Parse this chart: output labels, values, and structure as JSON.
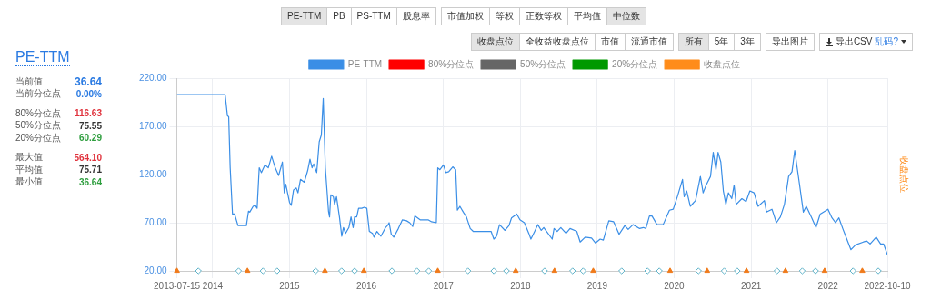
{
  "chart_data": [
    {
      "type": "other",
      "annotations": [
        "PE-TTM",
        "PB",
        "PS-TTM",
        "股息率",
        "市值加权",
        "等权",
        "正数等权",
        "平均值",
        "中位数",
        "收盘点位",
        "全收益收盘点位",
        "市值",
        "流通市值",
        "所有",
        "5年",
        "3年",
        "导出图片",
        "导出CSV",
        "乱码?"
      ]
    },
    {
      "type": "other",
      "title": "PE-TTM",
      "annotations": [
        "当前值",
        "36.64",
        "当前分位点",
        "0.00%",
        "80%分位点",
        "116.63",
        "50%分位点",
        "75.55",
        "20%分位点",
        "60.29",
        "最大值",
        "564.10",
        "平均值",
        "75.71",
        "最小值",
        "36.64"
      ]
    },
    {
      "type": "line",
      "y2label": "收盘点位",
      "legend": "top",
      "grid": true,
      "xlim": [
        "2013-07-15",
        "2022-10-10"
      ],
      "xticks": [
        "2013-07-15",
        "2014",
        "2015",
        "2016",
        "2017",
        "2018",
        "2019",
        "2020",
        "2021",
        "2022",
        "2022-10-10"
      ],
      "ylim": [
        20,
        220
      ],
      "yticks": [
        {
          "value": 20,
          "label": "20.00"
        },
        {
          "value": 70,
          "label": "70.00"
        },
        {
          "value": 120,
          "label": "120.00"
        },
        {
          "value": 170,
          "label": "170.00"
        },
        {
          "value": 220,
          "label": "220.00"
        }
      ],
      "series": [
        {
          "name": "PE-TTM",
          "type": "line",
          "color": "#3a8ee6",
          "x": [
            "2013-07-15",
            "2014-03-01",
            "2014-03-12",
            "2014-03-18",
            "2014-03-25",
            "2014-04-05",
            "2014-04-15",
            "2014-05-01",
            "2014-06-10",
            "2014-06-20",
            "2014-06-26",
            "2014-07-12",
            "2014-07-22",
            "2014-07-31",
            "2014-08-10",
            "2014-08-20",
            "2014-09-06",
            "2014-09-22",
            "2014-10-08",
            "2014-10-25",
            "2014-11-10",
            "2014-11-28",
            "2014-12-07",
            "2014-12-14",
            "2015-01-01",
            "2015-01-09",
            "2015-01-20",
            "2015-02-02",
            "2015-02-10",
            "2015-02-22",
            "2015-03-12",
            "2015-03-28",
            "2015-04-08",
            "2015-04-18",
            "2015-04-26",
            "2015-05-10",
            "2015-05-22",
            "2015-06-01",
            "2015-06-10",
            "2015-06-20",
            "2015-07-05",
            "2015-07-10",
            "2015-07-16",
            "2015-07-28",
            "2015-08-03",
            "2015-08-12",
            "2015-08-26",
            "2015-09-06",
            "2015-09-14",
            "2015-09-24",
            "2015-10-10",
            "2015-10-20",
            "2015-10-30",
            "2015-11-06",
            "2015-11-16",
            "2015-11-25",
            "2015-12-10",
            "2015-12-22",
            "2016-01-03",
            "2016-01-15",
            "2016-01-30",
            "2016-02-06",
            "2016-02-20",
            "2016-03-10",
            "2016-04-01",
            "2016-04-10",
            "2016-04-18",
            "2016-04-28",
            "2016-05-10",
            "2016-06-01",
            "2016-06-20",
            "2016-07-10",
            "2016-07-25",
            "2016-08-08",
            "2016-08-18",
            "2016-09-12",
            "2016-10-20",
            "2016-11-05",
            "2016-11-28",
            "2016-12-05",
            "2016-12-15",
            "2017-01-01",
            "2017-01-12",
            "2017-01-26",
            "2017-02-14",
            "2017-02-28",
            "2017-03-08",
            "2017-03-20",
            "2017-04-05",
            "2017-04-20",
            "2017-05-08",
            "2017-05-22",
            "2017-06-20",
            "2017-08-15",
            "2017-08-28",
            "2017-09-10",
            "2017-09-24",
            "2017-10-20",
            "2017-11-08",
            "2017-11-20",
            "2017-12-15",
            "2017-12-30",
            "2018-01-20",
            "2018-02-10",
            "2018-02-20",
            "2018-03-10",
            "2018-03-25",
            "2018-04-10",
            "2018-04-22",
            "2018-06-01",
            "2018-06-10",
            "2018-06-25",
            "2018-07-12",
            "2018-08-06",
            "2018-08-25",
            "2018-09-26",
            "2018-10-12",
            "2018-11-05",
            "2018-12-05",
            "2018-12-24",
            "2019-01-15",
            "2019-01-30",
            "2019-02-25",
            "2019-03-20",
            "2019-04-15",
            "2019-05-12",
            "2019-05-28",
            "2019-06-20",
            "2019-07-20",
            "2019-08-08",
            "2019-08-20",
            "2019-09-06",
            "2019-09-18",
            "2019-10-12",
            "2019-11-10",
            "2019-12-10",
            "2019-12-28",
            "2020-01-18",
            "2020-02-10",
            "2020-02-18",
            "2020-03-01",
            "2020-03-18",
            "2020-04-12",
            "2020-05-05",
            "2020-05-18",
            "2020-06-01",
            "2020-06-22",
            "2020-07-05",
            "2020-07-18",
            "2020-07-28",
            "2020-08-10",
            "2020-08-22",
            "2020-09-03",
            "2020-09-15",
            "2020-10-01",
            "2020-10-12",
            "2020-10-22",
            "2020-11-18",
            "2020-12-08",
            "2020-12-26",
            "2021-01-15",
            "2021-02-03",
            "2021-03-05",
            "2021-03-15",
            "2021-04-10",
            "2021-05-01",
            "2021-05-20",
            "2021-06-08",
            "2021-06-28",
            "2021-07-14",
            "2021-07-27",
            "2021-08-18",
            "2021-09-06",
            "2021-09-20",
            "2021-10-14",
            "2021-11-05",
            "2021-11-25",
            "2021-12-18",
            "2022-01-01",
            "2022-01-20",
            "2022-02-06",
            "2022-02-22",
            "2022-03-12",
            "2022-04-20",
            "2022-05-12",
            "2022-06-18",
            "2022-07-04",
            "2022-07-20",
            "2022-08-18",
            "2022-09-08",
            "2022-09-22",
            "2022-10-10"
          ],
          "values": [
            203,
            203,
            181,
            180,
            127,
            79,
            79,
            67,
            67,
            82,
            81,
            87,
            88,
            85,
            127,
            122,
            130,
            127,
            139,
            127,
            119,
            133,
            101,
            110,
            91,
            88,
            104,
            106,
            101,
            115,
            112,
            124,
            136,
            127,
            131,
            122,
            154,
            161,
            199,
            127,
            82,
            76,
            99,
            97,
            89,
            97,
            76,
            56,
            65,
            59,
            65,
            76,
            65,
            76,
            76,
            85,
            85,
            86,
            85,
            61,
            59,
            55,
            61,
            56,
            65,
            67,
            70,
            58,
            55,
            64,
            73,
            72,
            70,
            66,
            77,
            73,
            73,
            71,
            70,
            127,
            125,
            130,
            122,
            123,
            128,
            125,
            83,
            87,
            81,
            76,
            64,
            61,
            61,
            61,
            53,
            56,
            68,
            62,
            67,
            75,
            79,
            73,
            70,
            59,
            53,
            61,
            68,
            62,
            65,
            53,
            64,
            61,
            65,
            59,
            64,
            61,
            50,
            55,
            54,
            49,
            53,
            52,
            72,
            71,
            58,
            67,
            63,
            68,
            64,
            65,
            64,
            77,
            77,
            68,
            68,
            83,
            84,
            98,
            115,
            97,
            103,
            87,
            93,
            118,
            101,
            109,
            118,
            143,
            125,
            143,
            133,
            103,
            89,
            101,
            95,
            109,
            89,
            95,
            92,
            103,
            101,
            87,
            93,
            81,
            84,
            70,
            76,
            89,
            118,
            123,
            145,
            111,
            81,
            87,
            76,
            65,
            79,
            82,
            84,
            75,
            70,
            75,
            64,
            42,
            47,
            50,
            51,
            48,
            55,
            48,
            48,
            37
          ]
        },
        {
          "name": "80%分位点",
          "type": "line",
          "color": "#ff0000"
        },
        {
          "name": "50%分位点",
          "type": "line",
          "color": "#666666"
        },
        {
          "name": "20%分位点",
          "type": "line",
          "color": "#009900"
        },
        {
          "name": "收盘点位",
          "type": "line",
          "color": "#ff8c1a"
        },
        {
          "type": "scatter",
          "marker": "triangle",
          "color": "#f07a1a",
          "x": [
            "2013-07-15",
            "2014-06-15",
            "2015-06-18",
            "2015-12-20",
            "2016-12-05",
            "2017-12-10",
            "2018-06-12",
            "2018-12-13",
            "2019-12-13",
            "2020-06-06",
            "2020-12-10",
            "2021-06-13",
            "2021-12-16",
            "2022-06-13"
          ],
          "values": [
            20,
            20,
            20,
            20,
            20,
            20,
            20,
            20,
            20,
            20,
            20,
            20,
            20,
            20
          ]
        },
        {
          "type": "scatter",
          "marker": "diamond",
          "color": "#5fb3c9",
          "x": [
            "2013-10-25",
            "2014-05-04",
            "2014-08-28",
            "2014-11-03",
            "2015-05-05",
            "2015-09-05",
            "2015-11-06",
            "2016-05-01",
            "2016-08-28",
            "2016-10-23",
            "2017-04-27",
            "2017-08-28",
            "2017-10-27",
            "2018-04-26",
            "2018-09-06",
            "2018-10-26",
            "2019-04-27",
            "2019-08-28",
            "2019-10-23",
            "2020-04-26",
            "2020-08-26",
            "2020-10-27",
            "2021-05-04",
            "2021-09-01",
            "2021-11-03",
            "2022-04-30",
            "2022-08-28"
          ],
          "values": [
            20,
            20,
            20,
            20,
            20,
            20,
            20,
            20,
            20,
            20,
            20,
            20,
            20,
            20,
            20,
            20,
            20,
            20,
            20,
            20,
            20,
            20,
            20,
            20,
            20,
            20,
            20
          ]
        }
      ]
    }
  ]
}
